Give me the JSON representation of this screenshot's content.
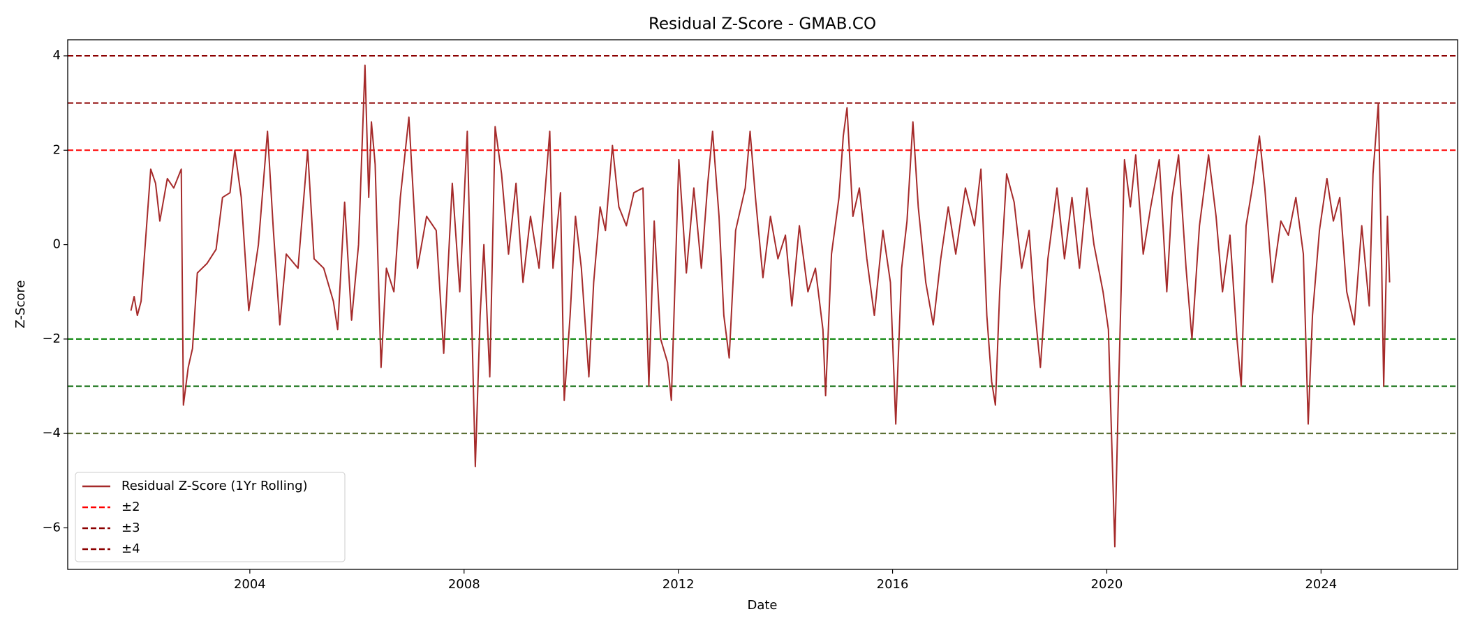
{
  "chart_data": {
    "type": "line",
    "title": "Residual Z-Score - GMAB.CO",
    "x_label": "Date",
    "y_label": "Z-Score",
    "xlim": [
      2000.6,
      2026.55
    ],
    "xticks": [
      2004,
      2008,
      2012,
      2016,
      2020,
      2024
    ],
    "ylim": [
      -6.88,
      4.34
    ],
    "yticks": [
      {
        "value": -6,
        "label": "−6"
      },
      {
        "value": -4,
        "label": "−4"
      },
      {
        "value": -2,
        "label": "−2"
      },
      0,
      2,
      4
    ],
    "grid": false,
    "legend_position": "lower left",
    "x": [
      2001.78,
      2001.84,
      2001.9,
      2001.97,
      2002.06,
      2002.15,
      2002.24,
      2002.32,
      2002.46,
      2002.58,
      2002.72,
      2002.76,
      2002.85,
      2002.93,
      2003.02,
      2003.2,
      2003.37,
      2003.49,
      2003.63,
      2003.72,
      2003.84,
      2003.98,
      2004.16,
      2004.33,
      2004.44,
      2004.56,
      2004.68,
      2004.9,
      2005.08,
      2005.2,
      2005.38,
      2005.56,
      2005.64,
      2005.77,
      2005.9,
      2006.03,
      2006.15,
      2006.22,
      2006.27,
      2006.34,
      2006.45,
      2006.55,
      2006.69,
      2006.81,
      2006.97,
      2007.13,
      2007.3,
      2007.48,
      2007.62,
      2007.78,
      2007.92,
      2008.06,
      2008.13,
      2008.21,
      2008.3,
      2008.37,
      2008.48,
      2008.58,
      2008.7,
      2008.83,
      2008.97,
      2009.1,
      2009.24,
      2009.4,
      2009.6,
      2009.66,
      2009.8,
      2009.87,
      2009.98,
      2010.08,
      2010.19,
      2010.33,
      2010.42,
      2010.54,
      2010.64,
      2010.77,
      2010.89,
      2011.03,
      2011.17,
      2011.34,
      2011.45,
      2011.55,
      2011.67,
      2011.8,
      2011.87,
      2012.01,
      2012.15,
      2012.29,
      2012.43,
      2012.55,
      2012.64,
      2012.76,
      2012.85,
      2012.95,
      2013.07,
      2013.25,
      2013.34,
      2013.44,
      2013.58,
      2013.72,
      2013.86,
      2014.0,
      2014.12,
      2014.26,
      2014.42,
      2014.56,
      2014.7,
      2014.75,
      2014.86,
      2015.0,
      2015.08,
      2015.15,
      2015.26,
      2015.38,
      2015.52,
      2015.66,
      2015.82,
      2015.96,
      2016.06,
      2016.17,
      2016.27,
      2016.38,
      2016.48,
      2016.62,
      2016.76,
      2016.9,
      2017.04,
      2017.18,
      2017.36,
      2017.53,
      2017.65,
      2017.76,
      2017.85,
      2017.92,
      2018.0,
      2018.13,
      2018.27,
      2018.41,
      2018.55,
      2018.65,
      2018.76,
      2018.9,
      2019.07,
      2019.21,
      2019.35,
      2019.49,
      2019.63,
      2019.76,
      2019.93,
      2020.03,
      2020.15,
      2020.21,
      2020.33,
      2020.44,
      2020.54,
      2020.68,
      2020.82,
      2020.98,
      2021.12,
      2021.22,
      2021.34,
      2021.48,
      2021.59,
      2021.73,
      2021.9,
      2022.04,
      2022.16,
      2022.3,
      2022.43,
      2022.51,
      2022.6,
      2022.73,
      2022.85,
      2022.95,
      2023.09,
      2023.25,
      2023.39,
      2023.53,
      2023.67,
      2023.76,
      2023.84,
      2023.97,
      2024.11,
      2024.23,
      2024.35,
      2024.48,
      2024.62,
      2024.76,
      2024.9,
      2024.97,
      2025.07,
      2025.13,
      2025.17,
      2025.24,
      2025.28
    ],
    "series": [
      {
        "name": "Residual Z-Score (1Yr Rolling)",
        "color": "#a52a2a",
        "values": [
          -1.4,
          -1.1,
          -1.5,
          -1.2,
          0.2,
          1.6,
          1.3,
          0.5,
          1.4,
          1.2,
          1.6,
          -3.4,
          -2.6,
          -2.2,
          -0.6,
          -0.4,
          -0.1,
          1.0,
          1.1,
          2.0,
          1.0,
          -1.4,
          0.0,
          2.4,
          0.3,
          -1.7,
          -0.2,
          -0.5,
          2.0,
          -0.3,
          -0.5,
          -1.2,
          -1.8,
          0.9,
          -1.6,
          0.0,
          3.8,
          1.0,
          2.6,
          1.7,
          -2.6,
          -0.5,
          -1.0,
          1.0,
          2.7,
          -0.5,
          0.6,
          0.3,
          -2.3,
          1.3,
          -1.0,
          2.4,
          -1.0,
          -4.7,
          -1.5,
          0.0,
          -2.8,
          2.5,
          1.5,
          -0.2,
          1.3,
          -0.8,
          0.6,
          -0.5,
          2.4,
          -0.5,
          1.1,
          -3.3,
          -1.5,
          0.6,
          -0.5,
          -2.8,
          -0.8,
          0.8,
          0.3,
          2.1,
          0.8,
          0.4,
          1.1,
          1.2,
          -3.0,
          0.5,
          -2.0,
          -2.5,
          -3.3,
          1.8,
          -0.6,
          1.2,
          -0.5,
          1.3,
          2.4,
          0.6,
          -1.5,
          -2.4,
          0.3,
          1.2,
          2.4,
          1.0,
          -0.7,
          0.6,
          -0.3,
          0.2,
          -1.3,
          0.4,
          -1.0,
          -0.5,
          -1.8,
          -3.2,
          -0.2,
          1.0,
          2.3,
          2.9,
          0.6,
          1.2,
          -0.3,
          -1.5,
          0.3,
          -0.8,
          -3.8,
          -0.5,
          0.5,
          2.6,
          0.8,
          -0.8,
          -1.7,
          -0.3,
          0.8,
          -0.2,
          1.2,
          0.4,
          1.6,
          -1.5,
          -2.9,
          -3.4,
          -1.0,
          1.5,
          0.9,
          -0.5,
          0.3,
          -1.3,
          -2.6,
          -0.3,
          1.2,
          -0.3,
          1.0,
          -0.5,
          1.2,
          0.0,
          -1.0,
          -1.8,
          -6.4,
          -3.5,
          1.8,
          0.8,
          1.9,
          -0.2,
          0.8,
          1.8,
          -1.0,
          1.0,
          1.9,
          -0.5,
          -2.0,
          0.4,
          1.9,
          0.6,
          -1.0,
          0.2,
          -2.0,
          -3.0,
          0.4,
          1.3,
          2.3,
          1.2,
          -0.8,
          0.5,
          0.2,
          1.0,
          -0.2,
          -3.8,
          -1.5,
          0.3,
          1.4,
          0.5,
          1.0,
          -1.0,
          -1.7,
          0.4,
          -1.3,
          1.5,
          3.0,
          -0.3,
          -3.0,
          0.6,
          -0.8
        ]
      }
    ],
    "reference_lines": [
      {
        "name": "±2",
        "values": [
          2,
          -2
        ],
        "colors": [
          "#ff0000",
          "#008000"
        ]
      },
      {
        "name": "±3",
        "values": [
          3,
          -3
        ],
        "colors": [
          "#8b0000",
          "#006400"
        ]
      },
      {
        "name": "±4",
        "values": [
          4,
          -4
        ],
        "colors": [
          "#8b0000",
          "#556b2f"
        ]
      }
    ]
  }
}
